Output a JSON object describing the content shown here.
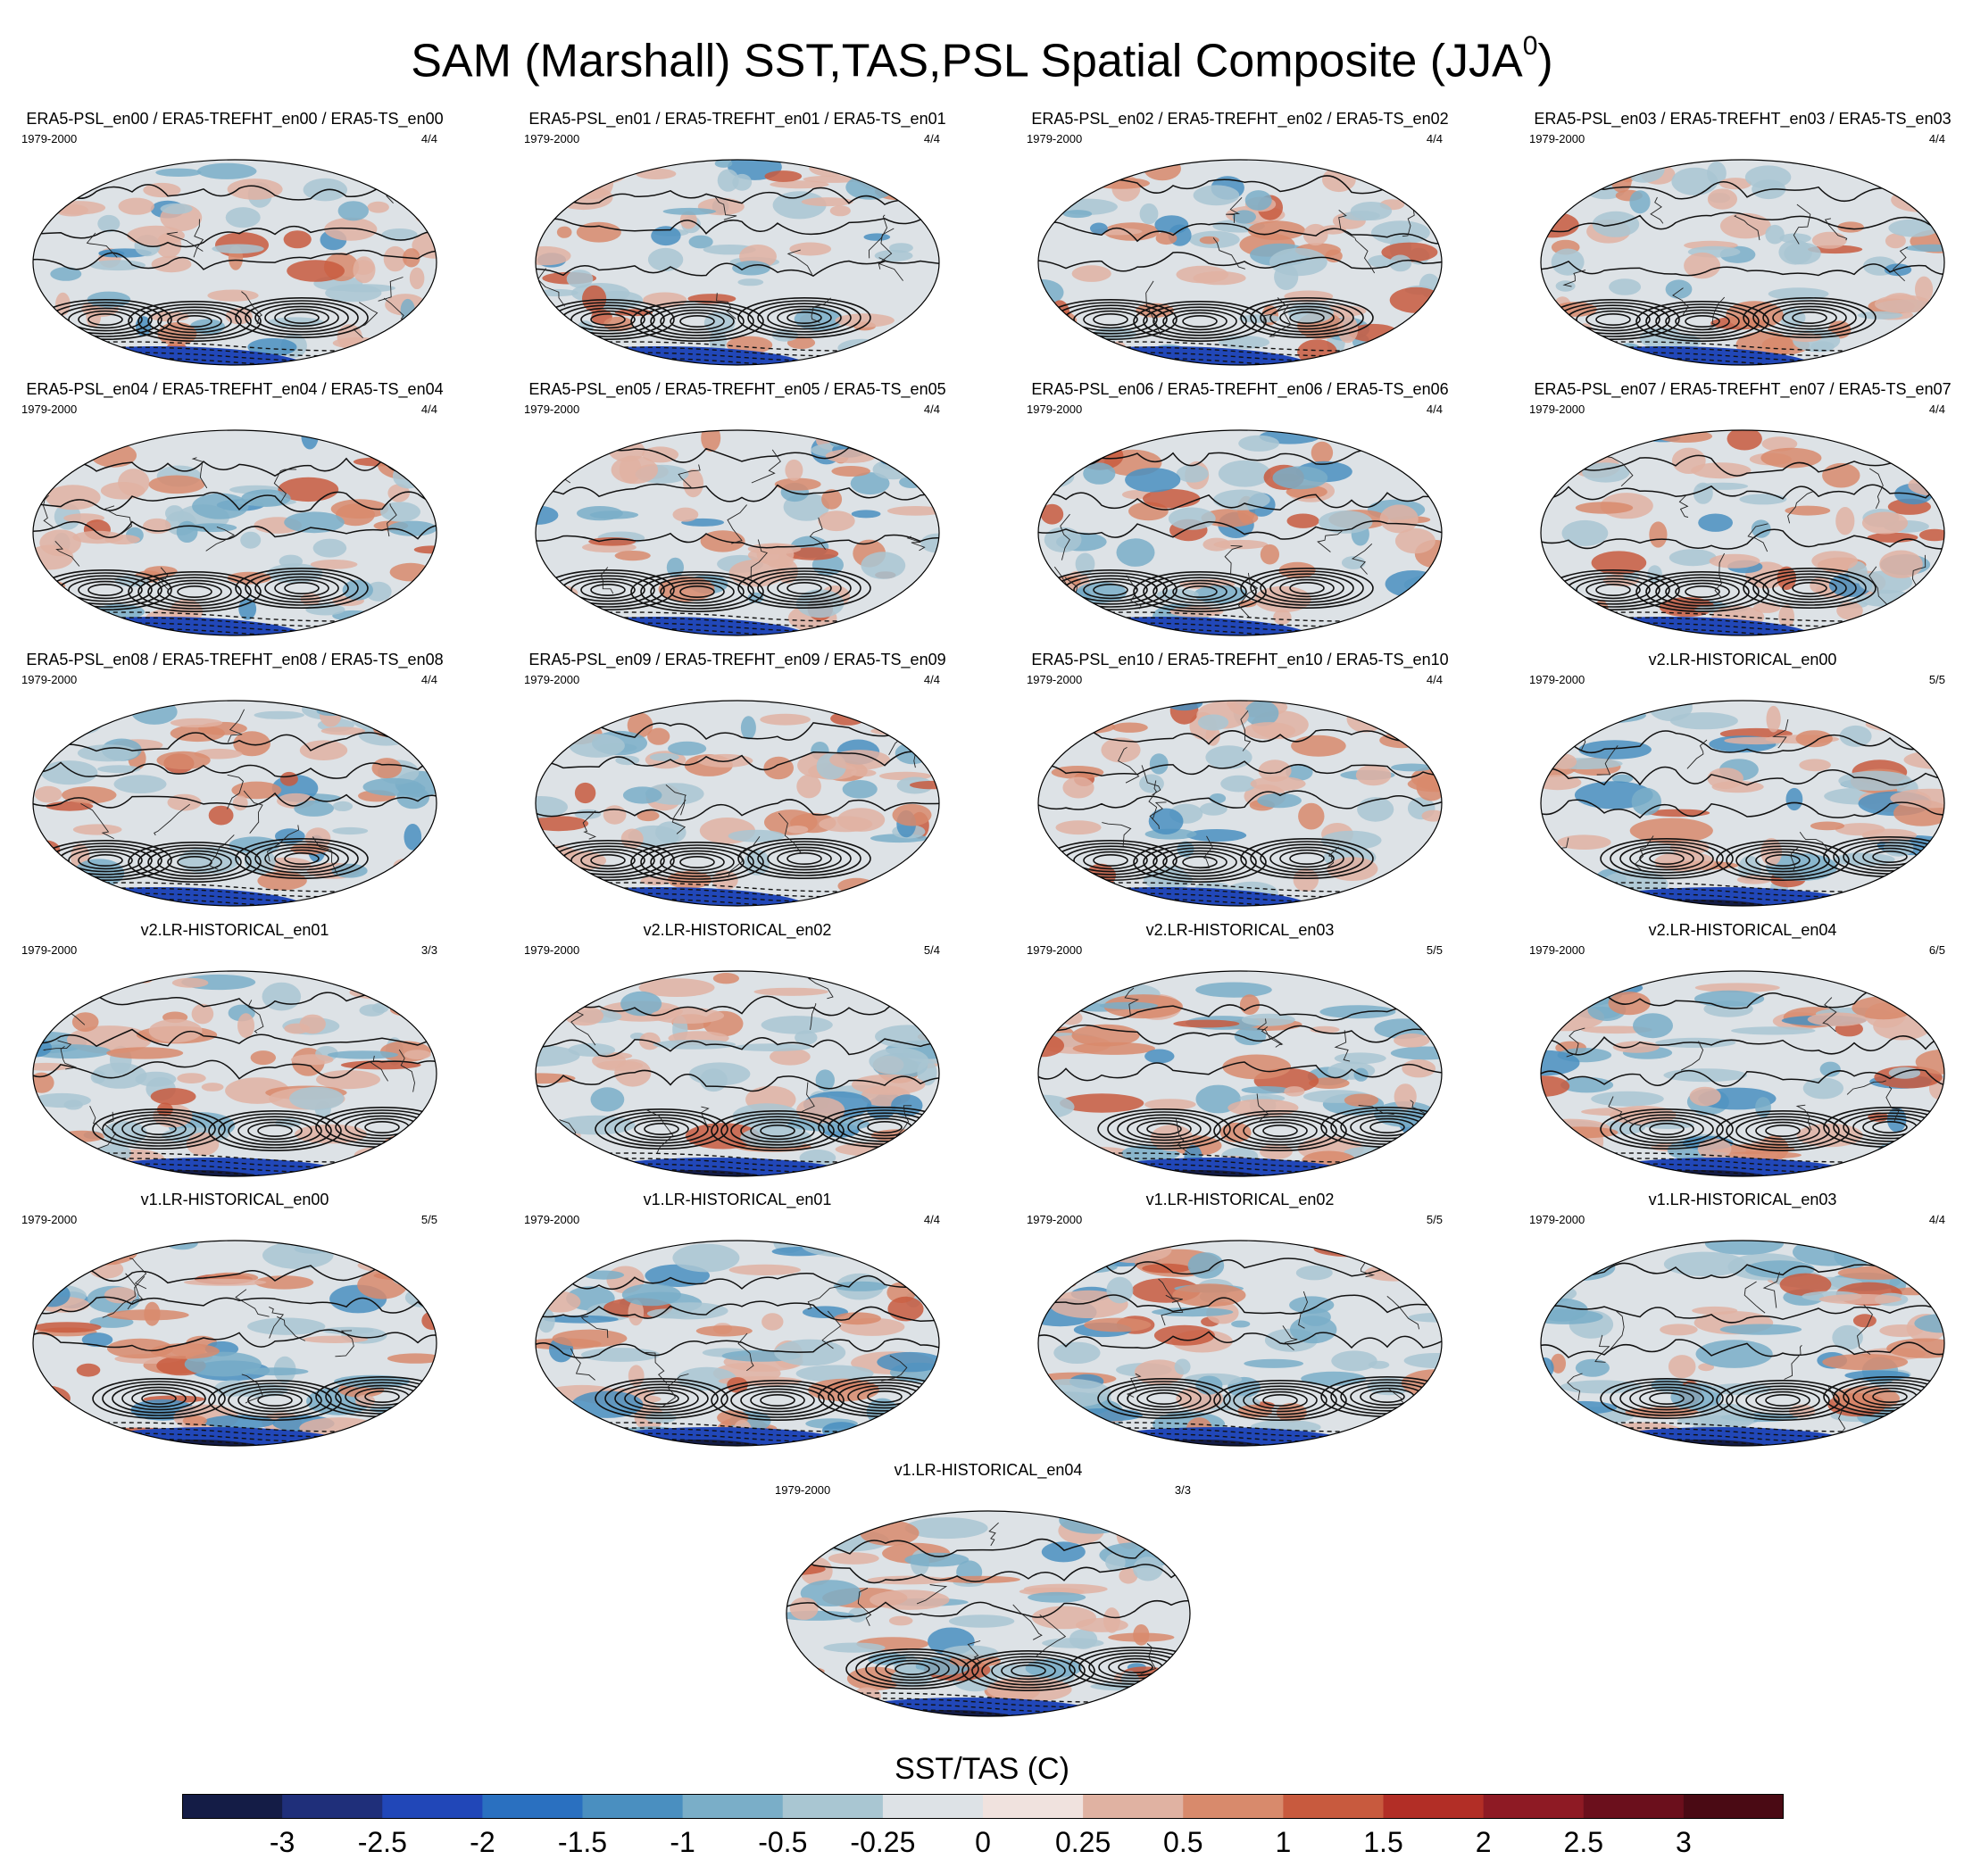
{
  "figure": {
    "title": "SAM (Marshall) SST,TAS,PSL Spatial Composite (JJA",
    "title_sup": "0",
    "title_close": ")"
  },
  "chart_data": {
    "type": "heatmap",
    "description_kind": "grid of map panels (Robinson projection) with filled SST/TAS anomalies and PSL contour lines",
    "panels": [
      {
        "title": "ERA5-PSL_en00 / ERA5-TREFHT_en00 / ERA5-TS_en00",
        "period": "1979-2000",
        "count": "4/4",
        "style": "era5"
      },
      {
        "title": "ERA5-PSL_en01 / ERA5-TREFHT_en01 / ERA5-TS_en01",
        "period": "1979-2000",
        "count": "4/4",
        "style": "era5"
      },
      {
        "title": "ERA5-PSL_en02 / ERA5-TREFHT_en02 / ERA5-TS_en02",
        "period": "1979-2000",
        "count": "4/4",
        "style": "era5"
      },
      {
        "title": "ERA5-PSL_en03 / ERA5-TREFHT_en03 / ERA5-TS_en03",
        "period": "1979-2000",
        "count": "4/4",
        "style": "era5"
      },
      {
        "title": "ERA5-PSL_en04 / ERA5-TREFHT_en04 / ERA5-TS_en04",
        "period": "1979-2000",
        "count": "4/4",
        "style": "era5"
      },
      {
        "title": "ERA5-PSL_en05 / ERA5-TREFHT_en05 / ERA5-TS_en05",
        "period": "1979-2000",
        "count": "4/4",
        "style": "era5"
      },
      {
        "title": "ERA5-PSL_en06 / ERA5-TREFHT_en06 / ERA5-TS_en06",
        "period": "1979-2000",
        "count": "4/4",
        "style": "era5"
      },
      {
        "title": "ERA5-PSL_en07 / ERA5-TREFHT_en07 / ERA5-TS_en07",
        "period": "1979-2000",
        "count": "4/4",
        "style": "era5"
      },
      {
        "title": "ERA5-PSL_en08 / ERA5-TREFHT_en08 / ERA5-TS_en08",
        "period": "1979-2000",
        "count": "4/4",
        "style": "era5"
      },
      {
        "title": "ERA5-PSL_en09 / ERA5-TREFHT_en09 / ERA5-TS_en09",
        "period": "1979-2000",
        "count": "4/4",
        "style": "era5"
      },
      {
        "title": "ERA5-PSL_en10 / ERA5-TREFHT_en10 / ERA5-TS_en10",
        "period": "1979-2000",
        "count": "4/4",
        "style": "era5"
      },
      {
        "title": "v2.LR-HISTORICAL_en00",
        "period": "1979-2000",
        "count": "5/5",
        "style": "model"
      },
      {
        "title": "v2.LR-HISTORICAL_en01",
        "period": "1979-2000",
        "count": "3/3",
        "style": "model"
      },
      {
        "title": "v2.LR-HISTORICAL_en02",
        "period": "1979-2000",
        "count": "5/4",
        "style": "model"
      },
      {
        "title": "v2.LR-HISTORICAL_en03",
        "period": "1979-2000",
        "count": "5/5",
        "style": "model"
      },
      {
        "title": "v2.LR-HISTORICAL_en04",
        "period": "1979-2000",
        "count": "6/5",
        "style": "model"
      },
      {
        "title": "v1.LR-HISTORICAL_en00",
        "period": "1979-2000",
        "count": "5/5",
        "style": "model"
      },
      {
        "title": "v1.LR-HISTORICAL_en01",
        "period": "1979-2000",
        "count": "4/4",
        "style": "model"
      },
      {
        "title": "v1.LR-HISTORICAL_en02",
        "period": "1979-2000",
        "count": "5/5",
        "style": "model"
      },
      {
        "title": "v1.LR-HISTORICAL_en03",
        "period": "1979-2000",
        "count": "4/4",
        "style": "model"
      },
      {
        "title": "v1.LR-HISTORICAL_en04",
        "period": "1979-2000",
        "count": "3/3",
        "style": "model"
      }
    ],
    "colorbar": {
      "title": "SST/TAS (C)",
      "tick_labels": [
        "-3",
        "-2.5",
        "-2",
        "-1.5",
        "-1",
        "-0.5",
        "-0.25",
        "0",
        "0.25",
        "0.5",
        "1",
        "1.5",
        "2",
        "2.5",
        "3"
      ],
      "colors": [
        "#141c46",
        "#1f2f7a",
        "#2147b8",
        "#2a70c0",
        "#4a8fc0",
        "#7aaec8",
        "#a9c6d2",
        "#dde2e6",
        "#f0e2de",
        "#e0b2a2",
        "#d88a6c",
        "#c85a3e",
        "#b22e26",
        "#8e1a24",
        "#6b0f1c",
        "#4a0a14"
      ]
    }
  }
}
